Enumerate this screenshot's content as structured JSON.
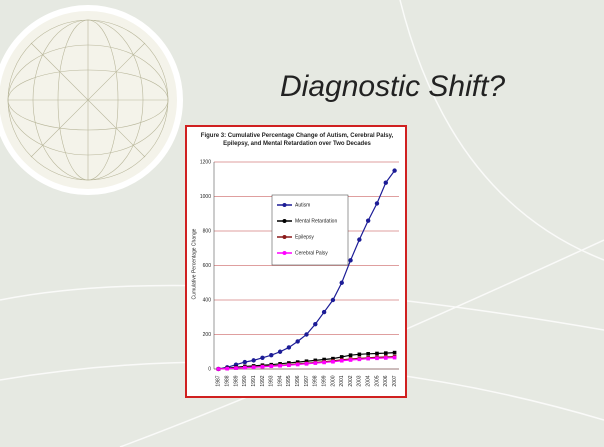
{
  "slide": {
    "title": "Diagnostic Shift?"
  },
  "chart_data": {
    "type": "line",
    "title": "Figure 3: Cumulative Percentage Change of Autism, Cerebral Palsy, Epilepsy, and Mental Retardation over Two Decades",
    "y_label": "Cumulative Percentage Change",
    "categories": [
      "1987",
      "1988",
      "1989",
      "1990",
      "1991",
      "1992",
      "1993",
      "1994",
      "1995",
      "1996",
      "1997",
      "1998",
      "1999",
      "2000",
      "2001",
      "2002",
      "2003",
      "2004",
      "2005",
      "2006",
      "2007"
    ],
    "series": [
      {
        "name": "Autism",
        "color": "#1c1c96",
        "values": [
          0,
          10,
          25,
          40,
          50,
          65,
          80,
          100,
          125,
          160,
          200,
          260,
          330,
          400,
          500,
          630,
          750,
          860,
          960,
          1080,
          1150
        ]
      },
      {
        "name": "Mental Retardation",
        "color": "#000000",
        "values": [
          0,
          5,
          10,
          15,
          18,
          22,
          25,
          30,
          35,
          40,
          45,
          50,
          55,
          60,
          70,
          80,
          85,
          88,
          90,
          92,
          95
        ]
      },
      {
        "name": "Epilepsy",
        "color": "#8b1a1a",
        "values": [
          0,
          3,
          6,
          9,
          12,
          15,
          18,
          21,
          25,
          30,
          33,
          38,
          42,
          47,
          53,
          58,
          62,
          65,
          68,
          70,
          72
        ]
      },
      {
        "name": "Cerebral Palsy",
        "color": "#ff00ff",
        "values": [
          0,
          2,
          5,
          8,
          10,
          13,
          16,
          19,
          22,
          26,
          30,
          34,
          38,
          42,
          48,
          52,
          56,
          60,
          62,
          64,
          66
        ]
      }
    ],
    "ylim": [
      0,
      1200
    ],
    "yticks": [
      0,
      200,
      400,
      600,
      800,
      1000,
      1200
    ],
    "grid": true,
    "grid_color": "#c04040",
    "legend": "upper left"
  }
}
